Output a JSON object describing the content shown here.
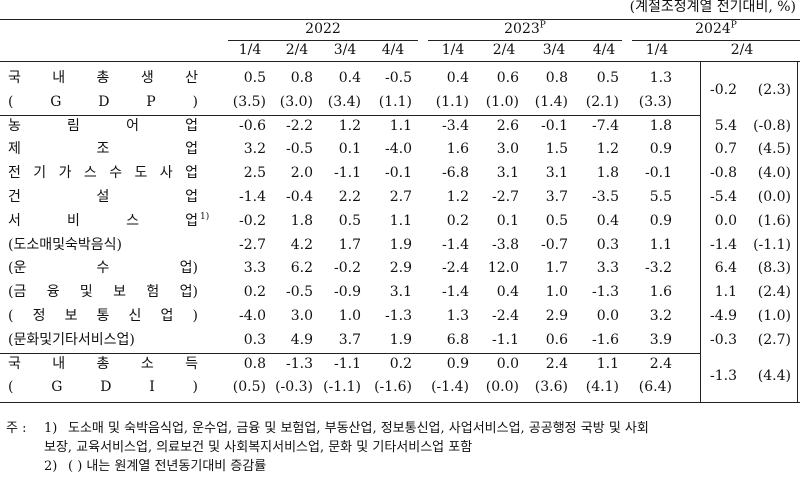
{
  "unit_note": "(계절조정계열 전기대비, %)",
  "header": {
    "years": [
      {
        "label": "2022"
      },
      {
        "label": "2023",
        "sup": "P"
      },
      {
        "label": "2024",
        "sup": "P"
      }
    ],
    "quarters": [
      "1/4",
      "2/4",
      "3/4",
      "4/4",
      "1/4",
      "2/4",
      "3/4",
      "4/4",
      "1/4",
      "2/4"
    ]
  },
  "rows": [
    {
      "label": [
        "국 내 총 생 산",
        "( G D P )"
      ],
      "values": [
        [
          "0.5",
          "0.8",
          "0.4",
          "-0.5",
          "0.4",
          "0.6",
          "0.8",
          "0.5",
          "1.3"
        ],
        [
          "(3.5)",
          "(3.0)",
          "(3.4)",
          "(1.1)",
          "(1.1)",
          "(1.0)",
          "(1.4)",
          "(2.1)",
          "(3.3)"
        ]
      ],
      "latest": [
        "-0.2",
        "(2.3)"
      ]
    },
    {
      "label": [
        "농 림 어 업"
      ],
      "values": [
        [
          "-0.6",
          "-2.2",
          "1.2",
          "1.1",
          "-3.4",
          "2.6",
          "-0.1",
          "-7.4",
          "1.8"
        ]
      ],
      "latest": [
        "5.4",
        "(-0.8)"
      ]
    },
    {
      "label": [
        "제 조 업"
      ],
      "values": [
        [
          "3.2",
          "-0.5",
          "0.1",
          "-4.0",
          "1.6",
          "3.0",
          "1.5",
          "1.2",
          "0.9"
        ]
      ],
      "latest": [
        "0.7",
        "(4.5)"
      ]
    },
    {
      "label": [
        "전 기 가 스 수 도 사 업"
      ],
      "values": [
        [
          "2.5",
          "2.0",
          "-1.1",
          "-0.1",
          "-6.8",
          "3.1",
          "3.1",
          "1.8",
          "-0.1"
        ]
      ],
      "latest": [
        "-0.8",
        "(4.0)"
      ]
    },
    {
      "label": [
        "건 설 업"
      ],
      "values": [
        [
          "-1.4",
          "-0.4",
          "2.2",
          "2.7",
          "1.2",
          "-2.7",
          "3.7",
          "-3.5",
          "5.5"
        ]
      ],
      "latest": [
        "-5.4",
        "(0.0)"
      ]
    },
    {
      "label": [
        "서 비 스 업"
      ],
      "note_ref": "1)",
      "values": [
        [
          "-0.2",
          "1.8",
          "0.5",
          "1.1",
          "0.2",
          "0.1",
          "0.5",
          "0.4",
          "0.9"
        ]
      ],
      "latest": [
        "0.0",
        "(1.6)"
      ]
    },
    {
      "label": [
        "(도소매및숙박음식)"
      ],
      "values": [
        [
          "-2.7",
          "4.2",
          "1.7",
          "1.9",
          "-1.4",
          "-3.8",
          "-0.7",
          "0.3",
          "1.1"
        ]
      ],
      "latest": [
        "-1.4",
        "(-1.1)"
      ]
    },
    {
      "label": [
        "(운 수 업)"
      ],
      "values": [
        [
          "3.3",
          "6.2",
          "-0.2",
          "2.9",
          "-2.4",
          "12.0",
          "1.7",
          "3.3",
          "-3.2"
        ]
      ],
      "latest": [
        "6.4",
        "(8.3)"
      ]
    },
    {
      "label": [
        "(금 융 및 보 험 업)"
      ],
      "values": [
        [
          "0.2",
          "-0.5",
          "-0.9",
          "3.1",
          "-1.4",
          "0.4",
          "1.0",
          "-1.3",
          "1.6"
        ]
      ],
      "latest": [
        "1.1",
        "(2.4)"
      ]
    },
    {
      "label": [
        "( 정 보 통 신 업 )"
      ],
      "values": [
        [
          "-4.0",
          "3.0",
          "1.0",
          "-1.3",
          "1.3",
          "-2.4",
          "2.9",
          "0.0",
          "3.2"
        ]
      ],
      "latest": [
        "-4.9",
        "(1.0)"
      ]
    },
    {
      "label": [
        "(문화및기타서비스업)"
      ],
      "values": [
        [
          "0.3",
          "4.9",
          "3.7",
          "1.9",
          "6.8",
          "-1.1",
          "0.6",
          "-1.6",
          "3.9"
        ]
      ],
      "latest": [
        "-0.3",
        "(2.7)"
      ]
    },
    {
      "label": [
        "국 내 총 소 득",
        "( G D I )"
      ],
      "values": [
        [
          "0.8",
          "-1.3",
          "-1.1",
          "0.2",
          "0.9",
          "0.0",
          "2.4",
          "1.1",
          "2.4"
        ],
        [
          "(0.5)",
          "(-0.3)",
          "(-1.1)",
          "(-1.6)",
          "(-1.4)",
          "(0.0)",
          "(3.6)",
          "(4.1)",
          "(6.4)"
        ]
      ],
      "latest": [
        "-1.3",
        "(4.4)"
      ]
    }
  ],
  "notes": {
    "prefix": "주 :",
    "items": [
      {
        "num": "1)",
        "lines": [
          "도소매 및 숙박음식업, 운수업, 금융 및 보험업, 부동산업, 정보통신업, 사업서비스업, 공공행정 국방 및 사회",
          "보장, 교육서비스업, 의료보건 및 사회복지서비스업, 문화 및 기타서비스업 포함"
        ]
      },
      {
        "num": "2)",
        "lines": [
          "( ) 내는 원계열 전년동기대비 증감률"
        ]
      }
    ]
  }
}
